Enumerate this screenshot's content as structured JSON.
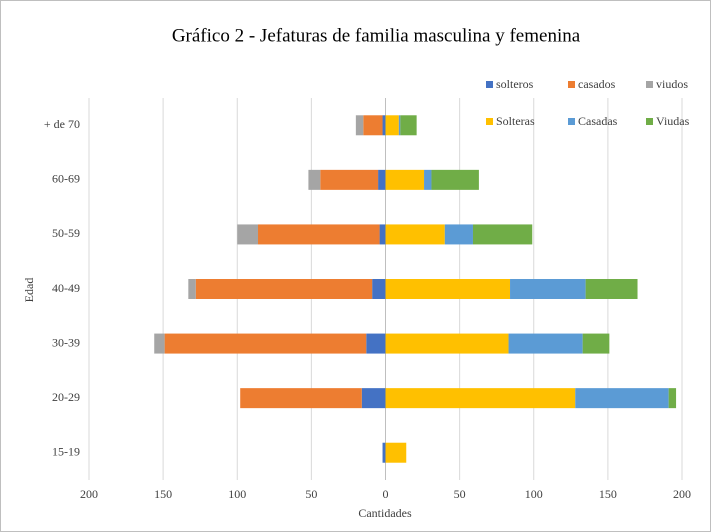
{
  "chart_data": {
    "type": "stacked_hbar",
    "title": "Gráfico 2 - Jefaturas de familia masculina y femenina",
    "xlabel": "Cantidades",
    "ylabel": "Edad",
    "categories": [
      "15-19",
      "20-29",
      "30-39",
      "40-49",
      "50-59",
      "60-69",
      "+ de 70"
    ],
    "series": [
      {
        "name": "solteros",
        "color": "#4472c4",
        "values": [
          -2,
          -16,
          -13,
          -9,
          -4,
          -5,
          -2
        ]
      },
      {
        "name": "casados",
        "color": "#ed7d31",
        "values": [
          0,
          -82,
          -136,
          -119,
          -82,
          -39,
          -13
        ]
      },
      {
        "name": "viudos",
        "color": "#a5a5a5",
        "values": [
          0,
          0,
          -7,
          -5,
          -14,
          -8,
          -5
        ]
      },
      {
        "name": "Solteras",
        "color": "#ffc000",
        "values": [
          14,
          128,
          83,
          84,
          40,
          26,
          9
        ]
      },
      {
        "name": "Casadas",
        "color": "#5b9bd5",
        "values": [
          0,
          63,
          50,
          51,
          19,
          5,
          1
        ]
      },
      {
        "name": "Viudas",
        "color": "#70ad47",
        "values": [
          0,
          5,
          18,
          35,
          40,
          32,
          11
        ]
      }
    ],
    "xlim": [
      -200,
      200
    ],
    "xticks": [
      {
        "value": -200,
        "label": "200"
      },
      {
        "value": -150,
        "label": "150"
      },
      {
        "value": -100,
        "label": "100"
      },
      {
        "value": -50,
        "label": "50"
      },
      0,
      50,
      100,
      150,
      200
    ],
    "grid": true,
    "legend": "upper right"
  }
}
